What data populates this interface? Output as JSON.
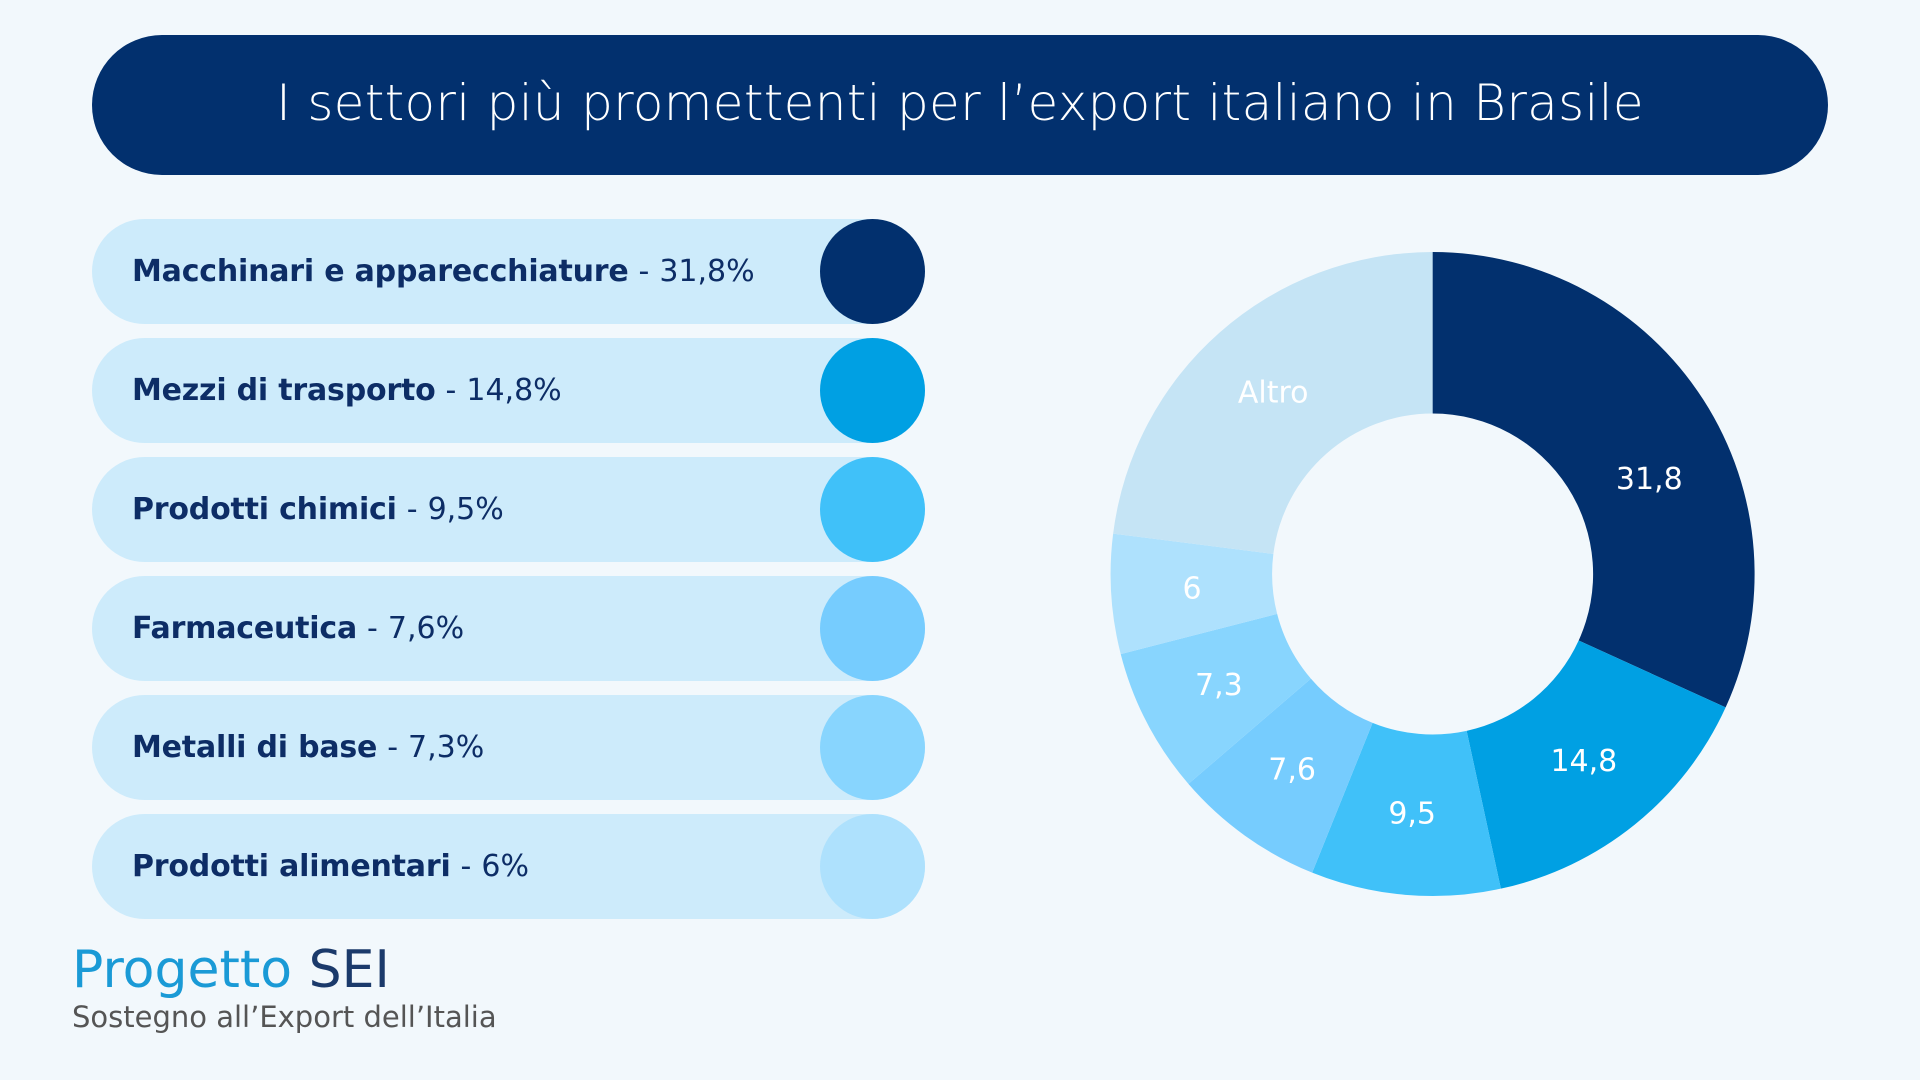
{
  "header": {
    "title": "I settori più promettenti per l’export italiano in Brasile"
  },
  "legend": {
    "items": [
      {
        "label": "Macchinari e apparecchiature",
        "separator": "-",
        "value": "31,8%",
        "color": "#02306E"
      },
      {
        "label": "Mezzi di trasporto",
        "separator": "-",
        "value": "14,8%",
        "color": "#00A0E3"
      },
      {
        "label": "Prodotti chimici",
        "separator": "-",
        "value": "9,5%",
        "color": "#40C1F9"
      },
      {
        "label": "Farmaceutica",
        "separator": "-",
        "value": "7,6%",
        "color": "#76CCFE"
      },
      {
        "label": "Metalli di base",
        "separator": "-",
        "value": "7,3%",
        "color": "#88D5FE"
      },
      {
        "label": "Prodotti alimentari",
        "separator": "-",
        "value": "6%",
        "color": "#AEE1FD"
      }
    ]
  },
  "chart_data": {
    "type": "pie",
    "variant": "donut",
    "title": "I settori più promettenti per l’export italiano in Brasile",
    "unit": "%",
    "start": "top, clockwise",
    "categories": [
      "Macchinari e apparecchiature",
      "Mezzi di trasporto",
      "Prodotti chimici",
      "Farmaceutica",
      "Metalli di base",
      "Prodotti alimentari",
      "Altro"
    ],
    "values": [
      31.8,
      14.8,
      9.5,
      7.6,
      7.3,
      6.0,
      23.0
    ],
    "data_labels": [
      "31,8",
      "14,8",
      "9,5",
      "7,6",
      "7,3",
      "6",
      "Altro"
    ],
    "colors": [
      "#02306E",
      "#00A0E3",
      "#40C1F9",
      "#76CCFE",
      "#88D5FE",
      "#AEE1FD",
      "#C5E4F5"
    ],
    "label_colors": [
      "#FFFFFF",
      "#FFFFFF",
      "#FFFFFF",
      "#FFFFFF",
      "#FFFFFF",
      "#FFFFFF",
      "#EEF6FB"
    ],
    "legend_placement": "left"
  },
  "footer": {
    "brand_light": "Progetto",
    "brand_bold": "SEI",
    "tagline": "Sostegno all’Export dell’Italia"
  },
  "colors": {
    "background": "#F2F8FC",
    "title_bar": "#02306E",
    "pill_background": "#CDEBFB",
    "legend_text": "#0D2D66"
  }
}
